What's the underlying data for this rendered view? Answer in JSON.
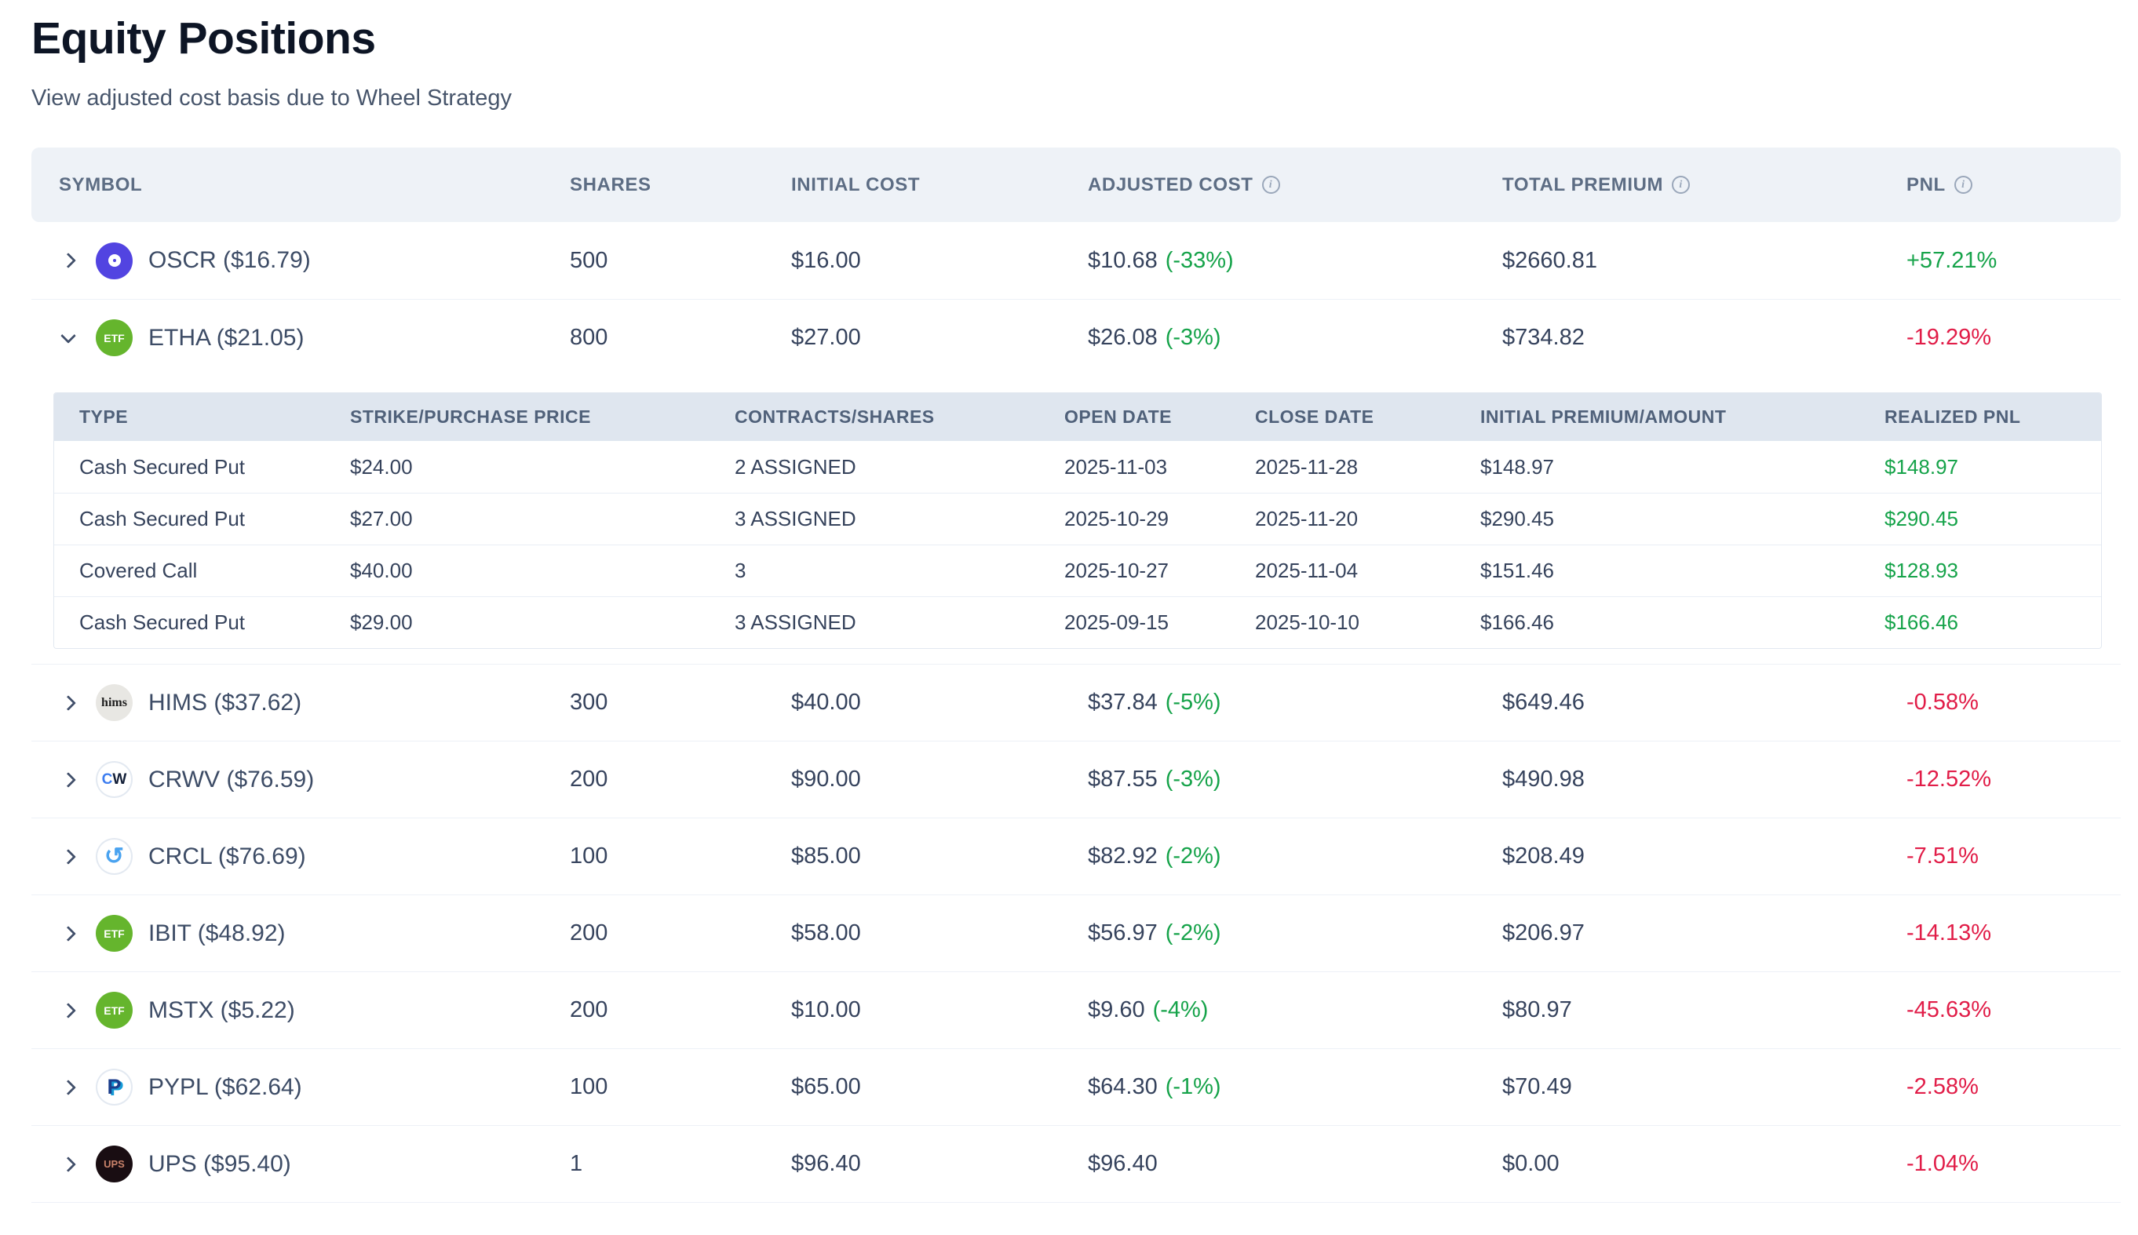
{
  "page": {
    "title": "Equity Positions",
    "subtitle": "View adjusted cost basis due to Wheel Strategy"
  },
  "colors": {
    "positive": "#16a34a",
    "negative": "#e11d48",
    "header_bg": "#eef2f7",
    "subheader_bg": "#dfe6ef"
  },
  "table": {
    "columns": [
      {
        "label": "SYMBOL",
        "info": false
      },
      {
        "label": "SHARES",
        "info": false
      },
      {
        "label": "INITIAL COST",
        "info": false
      },
      {
        "label": "ADJUSTED COST",
        "info": true
      },
      {
        "label": "TOTAL PREMIUM",
        "info": true
      },
      {
        "label": "PNL",
        "info": true
      }
    ],
    "info_icon": "i",
    "rows": [
      {
        "symbol": "OSCR ($16.79)",
        "shares": "500",
        "initial_cost": "$16.00",
        "adjusted_cost": "$10.68",
        "adjusted_pct": "(-33%)",
        "total_premium": "$2660.81",
        "pnl": "+57.21%",
        "expanded": false,
        "icon": {
          "name": "oscr-logo-icon",
          "bg": "#5244e1",
          "variant": "ring"
        }
      },
      {
        "symbol": "ETHA ($21.05)",
        "shares": "800",
        "initial_cost": "$27.00",
        "adjusted_cost": "$26.08",
        "adjusted_pct": "(-3%)",
        "total_premium": "$734.82",
        "pnl": "-19.29%",
        "expanded": true,
        "icon": {
          "name": "etf-badge-icon",
          "bg": "#65b52d",
          "label": "ETF",
          "label_color": "#ffffff",
          "label_size": 14
        }
      },
      {
        "symbol": "HIMS ($37.62)",
        "shares": "300",
        "initial_cost": "$40.00",
        "adjusted_cost": "$37.84",
        "adjusted_pct": "(-5%)",
        "total_premium": "$649.46",
        "pnl": "-0.58%",
        "expanded": false,
        "icon": {
          "name": "hims-logo-icon",
          "bg": "#e8e7e3",
          "label": "hims",
          "label_color": "#1f1f1f",
          "label_size": 16,
          "serif": true
        }
      },
      {
        "symbol": "CRWV ($76.59)",
        "shares": "200",
        "initial_cost": "$90.00",
        "adjusted_cost": "$87.55",
        "adjusted_pct": "(-3%)",
        "total_premium": "$490.98",
        "pnl": "-12.52%",
        "expanded": false,
        "icon": {
          "name": "coreweave-logo-icon",
          "bg": "#ffffff",
          "border": "#e3e9f1",
          "label_size": 19,
          "parts": [
            {
              "text": "C",
              "color": "#3d7df0"
            },
            {
              "text": "W",
              "color": "#131f38"
            }
          ]
        }
      },
      {
        "symbol": "CRCL ($76.69)",
        "shares": "100",
        "initial_cost": "$85.00",
        "adjusted_cost": "$82.92",
        "adjusted_pct": "(-2%)",
        "total_premium": "$208.49",
        "pnl": "-7.51%",
        "expanded": false,
        "icon": {
          "name": "circle-logo-icon",
          "bg": "#ffffff",
          "border": "#e3e9f1",
          "label": "↺",
          "label_color": "#4aa3f0",
          "label_size": 30
        }
      },
      {
        "symbol": "IBIT ($48.92)",
        "shares": "200",
        "initial_cost": "$58.00",
        "adjusted_cost": "$56.97",
        "adjusted_pct": "(-2%)",
        "total_premium": "$206.97",
        "pnl": "-14.13%",
        "expanded": false,
        "icon": {
          "name": "etf-badge-icon",
          "bg": "#65b52d",
          "label": "ETF",
          "label_color": "#ffffff",
          "label_size": 14
        }
      },
      {
        "symbol": "MSTX ($5.22)",
        "shares": "200",
        "initial_cost": "$10.00",
        "adjusted_cost": "$9.60",
        "adjusted_pct": "(-4%)",
        "total_premium": "$80.97",
        "pnl": "-45.63%",
        "expanded": false,
        "icon": {
          "name": "etf-badge-icon",
          "bg": "#65b52d",
          "label": "ETF",
          "label_color": "#ffffff",
          "label_size": 14
        }
      },
      {
        "symbol": "PYPL ($62.64)",
        "shares": "100",
        "initial_cost": "$65.00",
        "adjusted_cost": "$64.30",
        "adjusted_pct": "(-1%)",
        "total_premium": "$70.49",
        "pnl": "-2.58%",
        "expanded": false,
        "icon": {
          "name": "paypal-logo-icon",
          "bg": "#ffffff",
          "border": "#e3e9f1",
          "label": "P",
          "label_color": "#1b3d8c",
          "label_size": 27,
          "shadow": "#169bd7"
        }
      },
      {
        "symbol": "UPS ($95.40)",
        "shares": "1",
        "initial_cost": "$96.40",
        "adjusted_cost": "$96.40",
        "adjusted_pct": "",
        "total_premium": "$0.00",
        "pnl": "-1.04%",
        "expanded": false,
        "icon": {
          "name": "ups-logo-icon",
          "bg": "#190d12",
          "label": "UPS",
          "label_color": "#c9826a",
          "label_size": 13
        }
      }
    ]
  },
  "subtable": {
    "columns": [
      "TYPE",
      "STRIKE/PURCHASE PRICE",
      "CONTRACTS/SHARES",
      "OPEN DATE",
      "CLOSE DATE",
      "INITIAL PREMIUM/AMOUNT",
      "REALIZED PNL"
    ],
    "rows": [
      {
        "type": "Cash Secured Put",
        "strike": "$24.00",
        "contracts": "2 ASSIGNED",
        "open_date": "2025-11-03",
        "close_date": "2025-11-28",
        "premium": "$148.97",
        "realized_pnl": "$148.97"
      },
      {
        "type": "Cash Secured Put",
        "strike": "$27.00",
        "contracts": "3 ASSIGNED",
        "open_date": "2025-10-29",
        "close_date": "2025-11-20",
        "premium": "$290.45",
        "realized_pnl": "$290.45"
      },
      {
        "type": "Covered Call",
        "strike": "$40.00",
        "contracts": "3",
        "open_date": "2025-10-27",
        "close_date": "2025-11-04",
        "premium": "$151.46",
        "realized_pnl": "$128.93"
      },
      {
        "type": "Cash Secured Put",
        "strike": "$29.00",
        "contracts": "3 ASSIGNED",
        "open_date": "2025-09-15",
        "close_date": "2025-10-10",
        "premium": "$166.46",
        "realized_pnl": "$166.46"
      }
    ]
  }
}
